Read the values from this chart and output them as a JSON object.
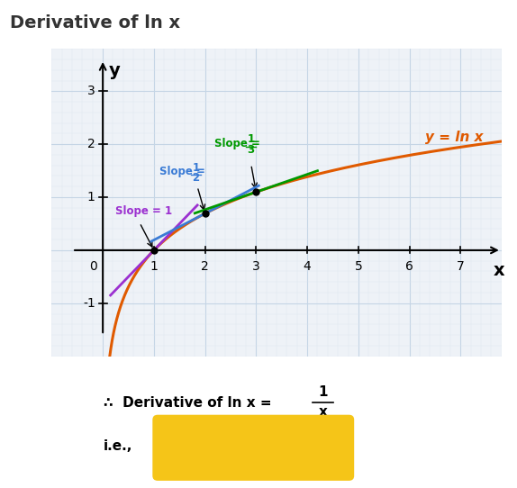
{
  "title": "Derivative of ln x",
  "bg_color": "#ffffff",
  "grid_bg_color": "#eef2f7",
  "grid_major_color": "#c5d5e5",
  "grid_minor_color": "#dde6f0",
  "curve_color": "#e05a00",
  "curve_label": "y = ln x",
  "tangent1_color": "#9b30d0",
  "tangent2_color": "#3a7bd5",
  "tangent3_color": "#009900",
  "xlim": [
    -0.6,
    7.8
  ],
  "ylim": [
    -1.6,
    3.6
  ],
  "xticks": [
    1,
    2,
    3,
    4,
    5,
    6,
    7
  ],
  "yticks": [
    -1,
    1,
    2,
    3
  ],
  "box_color": "#f5c518"
}
